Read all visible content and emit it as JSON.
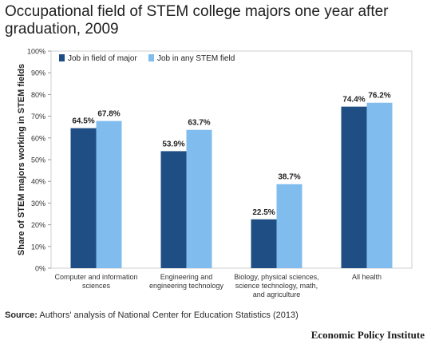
{
  "title": "Occupational field of STEM college majors one year after graduation, 2009",
  "source_label": "Source:",
  "source_text": "Authors' analysis of National Center for Education Statistics (2013)",
  "brand": "Economic Policy Institute",
  "colors": {
    "series1": "#1f4e84",
    "series2": "#80bcee",
    "plot_bg": "#ffffff",
    "grid": "#d0d0d0"
  },
  "chart_data": {
    "type": "bar",
    "categories": [
      [
        "Computer and information",
        "sciences"
      ],
      [
        "Engineering and",
        "engineering technology"
      ],
      [
        "Biology, physical sciences,",
        "science technology, math,",
        "and agriculture"
      ],
      [
        "All health"
      ]
    ],
    "series": [
      {
        "name": "Job in field of major",
        "values": [
          64.5,
          53.9,
          22.5,
          74.4
        ],
        "labels": [
          "64.5%",
          "53.9%",
          "22.5%",
          "74.4%"
        ]
      },
      {
        "name": "Job in any STEM field",
        "values": [
          67.8,
          63.7,
          38.7,
          76.2
        ],
        "labels": [
          "67.8%",
          "63.7%",
          "38.7%",
          "76.2%"
        ]
      }
    ],
    "ylabel": "Share of STEM majors working in STEM fields",
    "ylim": [
      0,
      100
    ],
    "yticks": [
      "0%",
      "10%",
      "20%",
      "30%",
      "40%",
      "50%",
      "60%",
      "70%",
      "80%",
      "90%",
      "100%"
    ],
    "legend": "top-left",
    "grid": false
  }
}
